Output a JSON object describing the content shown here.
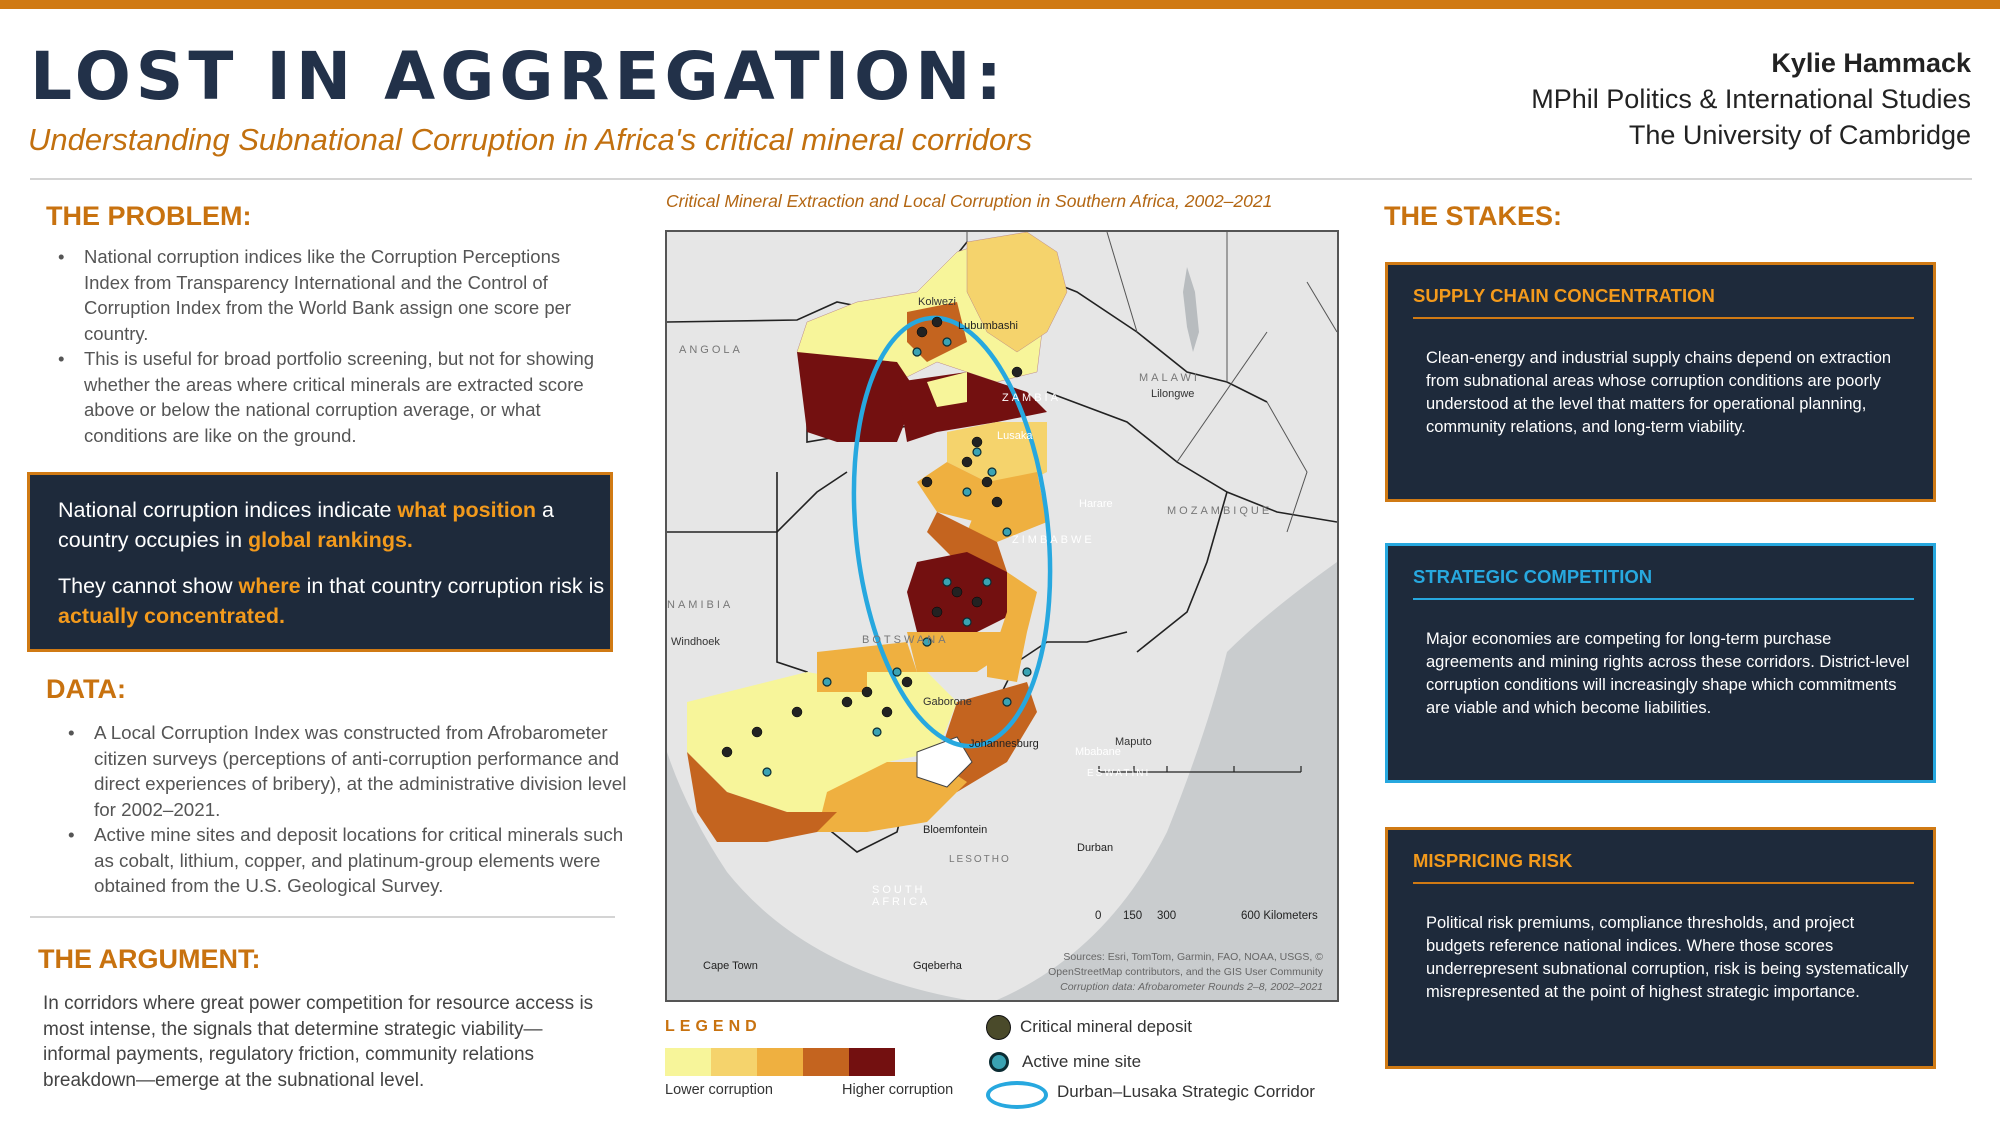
{
  "header": {
    "title": "LOST IN AGGREGATION:",
    "subtitle": "Understanding Subnational Corruption in Africa's critical mineral corridors",
    "author_name": "Kylie Hammack",
    "author_program": "MPhil Politics & International Studies",
    "author_institution": "The University of Cambridge"
  },
  "problem": {
    "heading": "THE PROBLEM:",
    "bullets": [
      "National corruption indices like the Corruption Perceptions Index from Transparency International and the Control of Corruption Index from the World Bank assign one score per country.",
      "This is useful for broad portfolio screening, but not for showing whether the areas where critical minerals are extracted score above or below the national corruption average, or what conditions are like on the ground."
    ]
  },
  "callout": {
    "l1a": "National corruption indices indicate ",
    "l1b": "what position",
    "l1c": " a country occupies in ",
    "l1d": "global rankings.",
    "l2a": "They cannot show ",
    "l2b": "where",
    "l2c": " in that country corruption risk is ",
    "l2d": "actually concentrated."
  },
  "data_section": {
    "heading": "DATA:",
    "bullets": [
      "A Local Corruption Index was constructed from Afrobarometer citizen surveys (perceptions of anti-corruption performance and direct experiences of bribery), at the administrative division level for 2002–2021.",
      "Active mine sites and deposit locations for critical minerals such as cobalt, lithium, copper, and platinum-group elements were obtained from the U.S. Geological Survey."
    ]
  },
  "argument": {
    "heading": "THE ARGUMENT:",
    "text": "In corridors where great power competition for resource access is most intense, the signals that determine strategic viability—informal payments, regulatory friction, community relations breakdown—emerge at the subnational level."
  },
  "map": {
    "title": "Critical Mineral Extraction and Local Corruption in Southern Africa, 2002–2021",
    "countries": [
      "ANGOLA",
      "ZAMBIA",
      "MALAWI",
      "MOZAMBIQUE",
      "ZIMBABWE",
      "NAMIBIA",
      "BOTSWANA",
      "SOUTH AFRICA",
      "ESWATINI",
      "LESOTHO"
    ],
    "cities": [
      "Kolwezi",
      "Lubumbashi",
      "Lusaka",
      "Lilongwe",
      "Harare",
      "Windhoek",
      "Gaborone",
      "Johannesburg",
      "Mbabane",
      "Maputo",
      "Bloemfontein",
      "Durban",
      "Cape Town",
      "Gqeberha"
    ],
    "scale_ticks": [
      "0",
      "150",
      "300",
      "600 Kilometers"
    ],
    "sources_1": "Sources: Esri, TomTom, Garmin, FAO, NOAA, USGS, ©",
    "sources_2": "OpenStreetMap contributors, and the GIS User Community",
    "sources_3": "Corruption data: Afrobarometer Rounds 2–8, 2002–2021",
    "colors": [
      "#f7f59a",
      "#f5d36c",
      "#efb040",
      "#c4641f",
      "#731010"
    ]
  },
  "legend": {
    "title": "LEGEND",
    "low": "Lower corruption",
    "high": "Higher corruption",
    "deposit": "Critical mineral deposit",
    "mine": "Active mine site",
    "corridor": "Durban–Lusaka Strategic Corridor"
  },
  "stakes": {
    "heading": "THE STAKES:",
    "cards": [
      {
        "title": "SUPPLY CHAIN CONCENTRATION",
        "color": "#f39a1c",
        "text": "Clean-energy and industrial supply chains depend on extraction from subnational areas whose corruption conditions are poorly understood at the level that matters for operational planning, community relations, and long-term viability."
      },
      {
        "title": "STRATEGIC COMPETITION",
        "color": "#27a8df",
        "text": "Major economies are competing for long-term purchase agreements and mining rights across these corridors. District-level corruption conditions will increasingly shape which commitments are viable and which become liabilities."
      },
      {
        "title": "MISPRICING RISK",
        "color": "#f39a1c",
        "text": "Political risk premiums, compliance thresholds, and project budgets reference national indices. Where those scores underrepresent subnational corruption, risk is being systematically misrepresented at the point of highest strategic importance."
      }
    ]
  }
}
